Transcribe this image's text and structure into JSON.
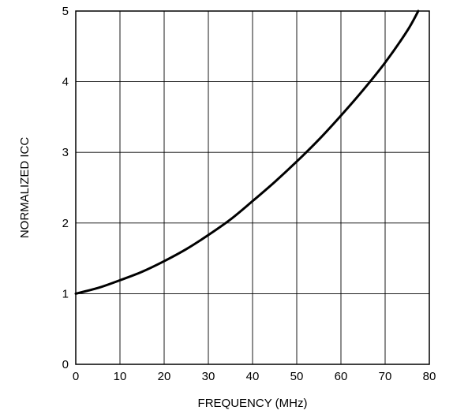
{
  "chart_data": {
    "type": "line",
    "title": "",
    "xlabel": "FREQUENCY (MHz)",
    "ylabel": "NORMALIZED ICC",
    "xlim": [
      0,
      80
    ],
    "ylim": [
      0,
      5
    ],
    "grid": true,
    "legend": "none",
    "x_ticks": [
      "0",
      "10",
      "20",
      "30",
      "40",
      "50",
      "60",
      "70",
      "80"
    ],
    "y_ticks": [
      "0",
      "1",
      "2",
      "3",
      "4",
      "5"
    ],
    "series": [
      {
        "color": "#000000",
        "x": [
          0,
          5,
          10,
          15,
          20,
          25,
          30,
          35,
          40,
          45,
          50,
          55,
          60,
          65,
          70,
          75,
          77.5
        ],
        "y": [
          1.0,
          1.08,
          1.19,
          1.31,
          1.46,
          1.63,
          1.83,
          2.05,
          2.31,
          2.58,
          2.87,
          3.18,
          3.52,
          3.88,
          4.27,
          4.72,
          5.0
        ]
      }
    ]
  }
}
